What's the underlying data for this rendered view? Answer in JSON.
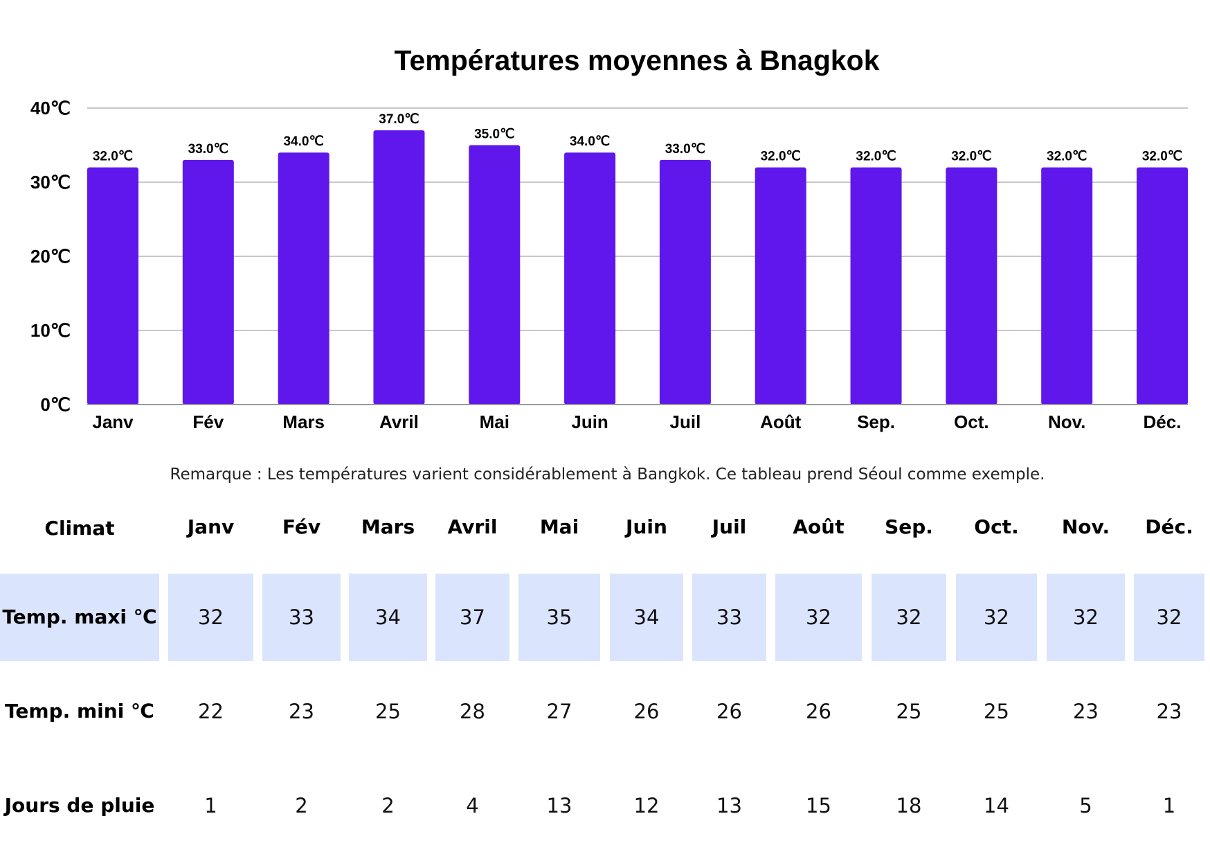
{
  "chart_data": {
    "type": "bar",
    "title": "Températures moyennes à Bnagkok",
    "categories": [
      "Janv",
      "Fév",
      "Mars",
      "Avril",
      "Mai",
      "Juin",
      "Juil",
      "Août",
      "Sep.",
      "Oct.",
      "Nov.",
      "Déc."
    ],
    "values": [
      32,
      33,
      34,
      37,
      35,
      34,
      33,
      32,
      32,
      32,
      32,
      32
    ],
    "data_labels": [
      "32.0℃",
      "33.0℃",
      "34.0℃",
      "37.0℃",
      "35.0℃",
      "34.0℃",
      "33.0℃",
      "32.0℃",
      "32.0℃",
      "32.0℃",
      "32.0℃",
      "32.0℃"
    ],
    "yticks": [
      "0℃",
      "10℃",
      "20℃",
      "30℃",
      "40℃"
    ],
    "ylim": [
      0,
      40
    ],
    "grid": true,
    "bar_color": "#5f17eb"
  },
  "note": "Remarque : Les températures varient considérablement à Bangkok. Ce tableau prend Séoul comme exemple.",
  "table": {
    "corner": "Climat",
    "months": [
      "Janv",
      "Fév",
      "Mars",
      "Avril",
      "Mai",
      "Juin",
      "Juil",
      "Août",
      "Sep.",
      "Oct.",
      "Nov.",
      "Déc."
    ],
    "rows": [
      {
        "label": "Temp. maxi ℃",
        "values": [
          "32",
          "33",
          "34",
          "37",
          "35",
          "34",
          "33",
          "32",
          "32",
          "32",
          "32",
          "32"
        ]
      },
      {
        "label": "Temp. mini ℃",
        "values": [
          "22",
          "23",
          "25",
          "28",
          "27",
          "26",
          "26",
          "26",
          "25",
          "25",
          "23",
          "23"
        ]
      },
      {
        "label": "Jours de pluie",
        "values": [
          "1",
          "2",
          "2",
          "4",
          "13",
          "12",
          "13",
          "15",
          "18",
          "14",
          "5",
          "1"
        ]
      }
    ],
    "highlight_color": "#dbe4fd"
  }
}
